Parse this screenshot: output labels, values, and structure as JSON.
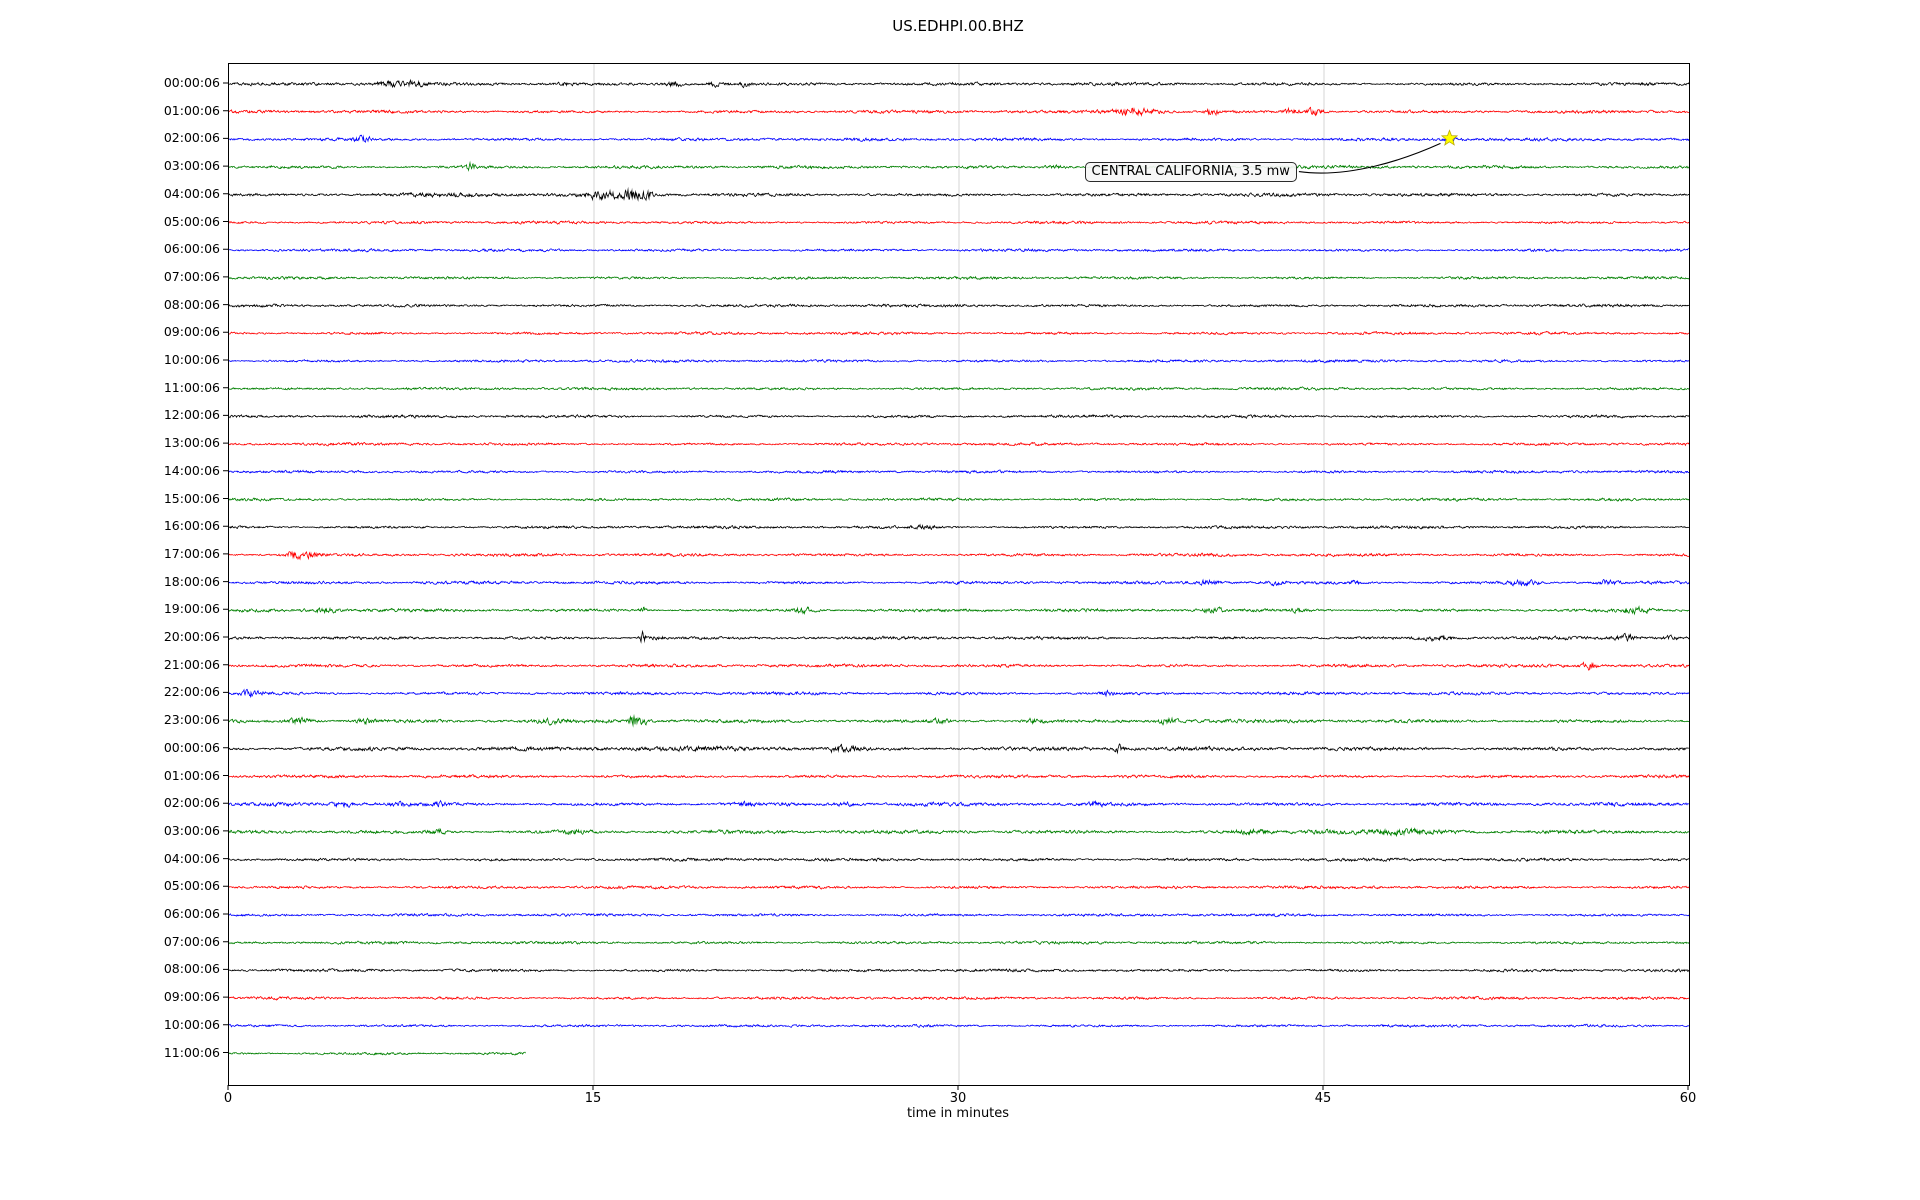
{
  "chart_data": {
    "type": "line",
    "title": "US.EDHPI.00.BHZ",
    "xlabel": "time in minutes",
    "xlim": [
      0,
      60
    ],
    "xticks": [
      0,
      15,
      30,
      45,
      60
    ],
    "grid_xticks": [
      15,
      30,
      45
    ],
    "palette": {
      "black": "#000000",
      "red": "#ff0000",
      "blue": "#0000ff",
      "green": "#008000",
      "grid": "#cccccc"
    },
    "description": "Helicorder day plot; one trace per hour, colors cycling black/red/blue/green; bursts listed as [minute, relative_amplitude, width_minutes]",
    "rows": [
      {
        "label": "00:00:06",
        "color": "black",
        "amp": 1.0,
        "events": [
          [
            6.6,
            4,
            0.35
          ],
          [
            7.6,
            3.5,
            0.25
          ],
          [
            13.8,
            2.5,
            0.2
          ],
          [
            18.3,
            3.5,
            0.3
          ],
          [
            20.0,
            3,
            0.35
          ],
          [
            21.2,
            4,
            0.12
          ]
        ]
      },
      {
        "label": "01:00:06",
        "color": "red",
        "amp": 1.0,
        "events": [
          [
            37.3,
            5,
            0.7
          ],
          [
            40.4,
            3.5,
            0.25
          ],
          [
            43.6,
            4,
            0.2
          ],
          [
            44.6,
            4.5,
            0.3
          ]
        ]
      },
      {
        "label": "02:00:06",
        "color": "blue",
        "amp": 1.0,
        "events": [
          [
            5.5,
            4.5,
            0.2
          ],
          [
            50.2,
            2,
            0.3
          ]
        ]
      },
      {
        "label": "03:00:06",
        "color": "green",
        "amp": 1.0,
        "events": [
          [
            9.9,
            5.5,
            0.15
          ],
          [
            34.0,
            2,
            0.4
          ]
        ]
      },
      {
        "label": "04:00:06",
        "color": "black",
        "amp": 1.05,
        "events": [
          [
            9.0,
            1.5,
            2.0
          ],
          [
            15.3,
            6,
            0.4
          ],
          [
            16.6,
            7,
            0.35
          ],
          [
            17.2,
            5,
            0.2
          ]
        ]
      },
      {
        "label": "05:00:06",
        "color": "red",
        "amp": 0.9,
        "events": []
      },
      {
        "label": "06:00:06",
        "color": "blue",
        "amp": 0.9,
        "events": []
      },
      {
        "label": "07:00:06",
        "color": "green",
        "amp": 0.9,
        "events": []
      },
      {
        "label": "08:00:06",
        "color": "black",
        "amp": 0.95,
        "events": []
      },
      {
        "label": "09:00:06",
        "color": "red",
        "amp": 0.9,
        "events": []
      },
      {
        "label": "10:00:06",
        "color": "blue",
        "amp": 0.9,
        "events": []
      },
      {
        "label": "11:00:06",
        "color": "green",
        "amp": 0.9,
        "events": []
      },
      {
        "label": "12:00:06",
        "color": "black",
        "amp": 0.95,
        "events": []
      },
      {
        "label": "13:00:06",
        "color": "red",
        "amp": 0.9,
        "events": []
      },
      {
        "label": "14:00:06",
        "color": "blue",
        "amp": 0.9,
        "events": []
      },
      {
        "label": "15:00:06",
        "color": "green",
        "amp": 0.9,
        "events": []
      },
      {
        "label": "16:00:06",
        "color": "black",
        "amp": 0.95,
        "events": [
          [
            28.6,
            2.5,
            0.3
          ]
        ]
      },
      {
        "label": "17:00:06",
        "color": "red",
        "amp": 1.0,
        "events": [
          [
            2.7,
            4.5,
            0.35
          ],
          [
            3.4,
            3.5,
            0.25
          ]
        ]
      },
      {
        "label": "18:00:06",
        "color": "blue",
        "amp": 1.0,
        "events": [
          [
            40.2,
            3.5,
            0.3
          ],
          [
            43.0,
            2.5,
            0.2
          ],
          [
            46.2,
            2.5,
            0.2
          ],
          [
            53.2,
            3.5,
            0.45
          ],
          [
            56.6,
            2.5,
            0.3
          ]
        ]
      },
      {
        "label": "19:00:06",
        "color": "green",
        "amp": 1.0,
        "events": [
          [
            3.9,
            3.5,
            0.4
          ],
          [
            17.0,
            7,
            0.08
          ],
          [
            23.6,
            4.5,
            0.3
          ],
          [
            40.4,
            3.5,
            0.35
          ],
          [
            43.9,
            2.5,
            0.3
          ],
          [
            57.9,
            3.5,
            0.4
          ]
        ]
      },
      {
        "label": "20:00:06",
        "color": "black",
        "amp": 1.0,
        "events": [
          [
            17.0,
            9,
            0.08
          ],
          [
            17.6,
            3.5,
            0.2
          ],
          [
            49.6,
            2.5,
            0.5
          ],
          [
            57.4,
            4.5,
            0.3
          ],
          [
            59.2,
            2.5,
            0.2
          ]
        ]
      },
      {
        "label": "21:00:06",
        "color": "red",
        "amp": 1.05,
        "events": [
          [
            55.9,
            5.5,
            0.18
          ]
        ]
      },
      {
        "label": "22:00:06",
        "color": "blue",
        "amp": 1.0,
        "events": [
          [
            0.9,
            4.5,
            0.3
          ],
          [
            36.1,
            2.5,
            0.2
          ]
        ]
      },
      {
        "label": "23:00:06",
        "color": "green",
        "amp": 1.15,
        "events": [
          [
            2.9,
            4.5,
            0.4
          ],
          [
            5.6,
            3.5,
            0.3
          ],
          [
            13.2,
            2.5,
            0.3
          ],
          [
            16.6,
            8,
            0.12
          ],
          [
            17.0,
            4,
            0.2
          ],
          [
            29.2,
            2.5,
            0.3
          ],
          [
            33.1,
            3.5,
            0.3
          ],
          [
            38.6,
            4.5,
            0.3
          ]
        ]
      },
      {
        "label": "00:00:06",
        "color": "black",
        "amp": 1.25,
        "events": [
          [
            20.0,
            1.5,
            3.0
          ],
          [
            25.1,
            3.5,
            0.5
          ],
          [
            36.6,
            5.5,
            0.15
          ]
        ]
      },
      {
        "label": "01:00:06",
        "color": "red",
        "amp": 1.0,
        "events": []
      },
      {
        "label": "02:00:06",
        "color": "blue",
        "amp": 1.15,
        "events": [
          [
            4.6,
            3.5,
            0.3
          ],
          [
            7.1,
            2.5,
            0.3
          ],
          [
            8.6,
            2.5,
            0.2
          ],
          [
            21.2,
            2.5,
            0.4
          ],
          [
            25.3,
            2.5,
            0.3
          ],
          [
            35.6,
            2.5,
            0.2
          ]
        ]
      },
      {
        "label": "03:00:06",
        "color": "green",
        "amp": 1.15,
        "events": [
          [
            8.6,
            2.5,
            0.3
          ],
          [
            14.2,
            2,
            0.5
          ],
          [
            42.1,
            2.5,
            0.6
          ],
          [
            45.2,
            2.5,
            0.8
          ],
          [
            48.3,
            2.8,
            1.0
          ]
        ]
      },
      {
        "label": "04:00:06",
        "color": "black",
        "amp": 1.0,
        "events": []
      },
      {
        "label": "05:00:06",
        "color": "red",
        "amp": 0.95,
        "events": []
      },
      {
        "label": "06:00:06",
        "color": "blue",
        "amp": 0.9,
        "events": []
      },
      {
        "label": "07:00:06",
        "color": "green",
        "amp": 0.9,
        "events": []
      },
      {
        "label": "08:00:06",
        "color": "black",
        "amp": 0.9,
        "events": []
      },
      {
        "label": "09:00:06",
        "color": "red",
        "amp": 0.9,
        "events": []
      },
      {
        "label": "10:00:06",
        "color": "blue",
        "amp": 0.85,
        "events": []
      },
      {
        "label": "11:00:06",
        "color": "green",
        "amp": 0.9,
        "events": [],
        "end_minute": 12.2
      }
    ],
    "annotation": {
      "text": "CENTRAL CALIFORNIA, 3.5 mw",
      "star_row": 2,
      "star_minute": 50.2,
      "box_row": 3.2,
      "box_minute": 35.2,
      "star_color": "#ffff00",
      "star_edge": "#b8a900"
    }
  }
}
